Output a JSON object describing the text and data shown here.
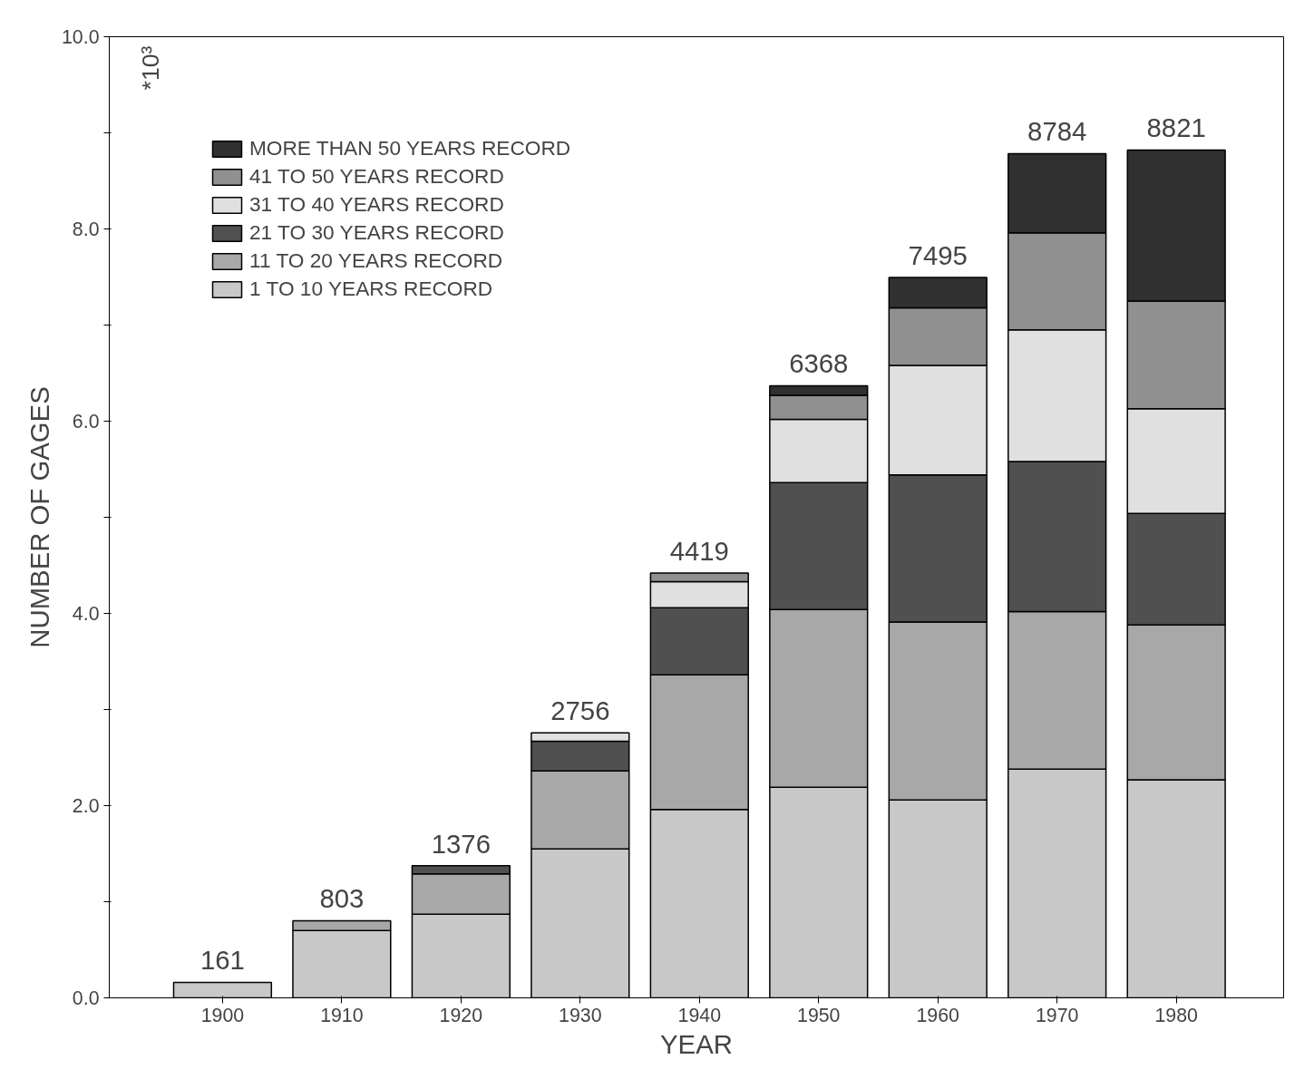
{
  "chart_data": {
    "type": "bar",
    "stacked": true,
    "xlabel": "YEAR",
    "ylabel": "NUMBER OF GAGES",
    "annotations": [
      "*10³"
    ],
    "categories": [
      "1900",
      "1910",
      "1920",
      "1930",
      "1940",
      "1950",
      "1960",
      "1970",
      "1980"
    ],
    "series": [
      {
        "name": "1 TO 10 YEARS RECORD",
        "color": "#c8c8c8",
        "values": [
          0.161,
          0.7,
          0.87,
          1.55,
          1.96,
          2.19,
          2.06,
          2.38,
          2.27
        ]
      },
      {
        "name": "11 TO 20 YEARS RECORD",
        "color": "#a8a8a8",
        "values": [
          null,
          0.103,
          0.42,
          0.81,
          1.4,
          1.85,
          1.85,
          1.64,
          1.61
        ]
      },
      {
        "name": "21 TO 30 YEARS RECORD",
        "color": "#505050",
        "values": [
          null,
          null,
          0.086,
          0.31,
          0.7,
          1.32,
          1.53,
          1.56,
          1.16
        ]
      },
      {
        "name": "31 TO 40 YEARS RECORD",
        "color": "#e0e0e0",
        "values": [
          null,
          null,
          null,
          0.086,
          0.27,
          0.66,
          1.14,
          1.37,
          1.09
        ]
      },
      {
        "name": "41 TO 50 YEARS RECORD",
        "color": "#909090",
        "values": [
          null,
          null,
          null,
          null,
          0.089,
          0.25,
          0.6,
          1.01,
          1.12
        ]
      },
      {
        "name": "MORE THAN 50 YEARS RECORD",
        "color": "#303030",
        "values": [
          null,
          null,
          null,
          null,
          null,
          0.098,
          0.315,
          0.824,
          1.571
        ]
      }
    ],
    "totals": [
      "161",
      "803",
      "1376",
      "2756",
      "4419",
      "6368",
      "7495",
      "8784",
      "8821"
    ],
    "ylim": [
      0,
      10
    ],
    "yticks": [
      {
        "value": 0,
        "label": "0.0"
      },
      {
        "value": 1,
        "label": null
      },
      {
        "value": 2,
        "label": "2.0"
      },
      {
        "value": 3,
        "label": null
      },
      {
        "value": 4,
        "label": "4.0"
      },
      {
        "value": 5,
        "label": null
      },
      {
        "value": 6,
        "label": "6.0"
      },
      {
        "value": 7,
        "label": null
      },
      {
        "value": 8,
        "label": "8.0"
      },
      {
        "value": 9,
        "label": null
      },
      {
        "value": 10,
        "label": "10.0"
      }
    ],
    "grid": false,
    "legend": "top left"
  }
}
